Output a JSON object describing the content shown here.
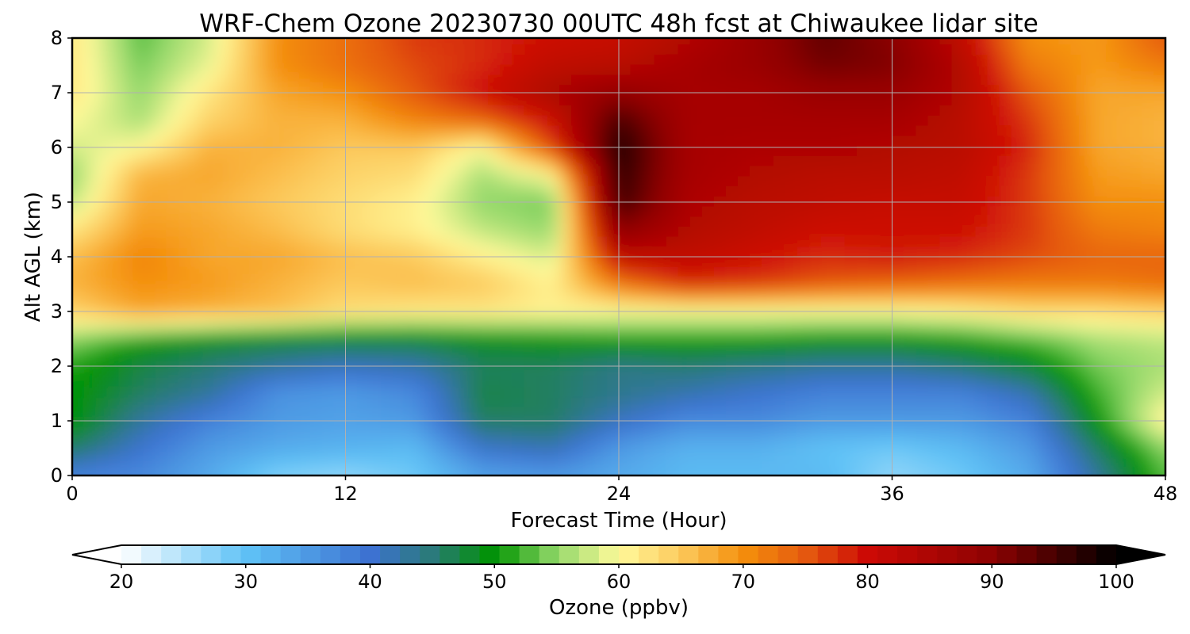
{
  "chart_data": {
    "type": "heatmap",
    "title": "WRF-Chem Ozone  20230730 00UTC 48h fcst at Chiwaukee lidar site",
    "xlabel": "Forecast Time (Hour)",
    "ylabel": "Alt AGL (km)",
    "xlim": [
      0,
      48
    ],
    "ylim": [
      0,
      8
    ],
    "x_ticks": [
      0,
      12,
      24,
      36,
      48
    ],
    "y_ticks": [
      0,
      1,
      2,
      3,
      4,
      5,
      6,
      7,
      8
    ],
    "grid": true,
    "x": [
      0,
      3,
      6,
      9,
      12,
      15,
      18,
      21,
      24,
      27,
      30,
      33,
      36,
      39,
      42,
      45,
      48
    ],
    "y": [
      0,
      0.5,
      1,
      1.5,
      2,
      2.5,
      3,
      3.5,
      4,
      4.5,
      5,
      5.5,
      6,
      6.5,
      7,
      7.5,
      8
    ],
    "z": [
      [
        38,
        37,
        33,
        28,
        27,
        29,
        34,
        35,
        33,
        31,
        31,
        31,
        27,
        29,
        33,
        43,
        53
      ],
      [
        46,
        40,
        35,
        33,
        32,
        31,
        40,
        42,
        35,
        32,
        32,
        30,
        29,
        31,
        35,
        46,
        55
      ],
      [
        50,
        43,
        38,
        35,
        34,
        35,
        46,
        46,
        41,
        37,
        37,
        35,
        35,
        35,
        38,
        50,
        61
      ],
      [
        50,
        46,
        43,
        36,
        35,
        37,
        47,
        46,
        44,
        42,
        40,
        38,
        38,
        38,
        42,
        52,
        58
      ],
      [
        51,
        47,
        45,
        43,
        41,
        42,
        46,
        46,
        44,
        45,
        44,
        43,
        43,
        45,
        48,
        54,
        56
      ],
      [
        55,
        51,
        49,
        48,
        48,
        48,
        49,
        50,
        51,
        51,
        51,
        50,
        50,
        51,
        53,
        56,
        57
      ],
      [
        64,
        68,
        67,
        66,
        63,
        62,
        62,
        61,
        60,
        60,
        60,
        60,
        60,
        61,
        63,
        63,
        64
      ],
      [
        67,
        70,
        69,
        67,
        65,
        66,
        65,
        61,
        72,
        78,
        77,
        75,
        74,
        73,
        72,
        72,
        73
      ],
      [
        66,
        71,
        68,
        68,
        66,
        65,
        61,
        58,
        82,
        82,
        80,
        78,
        79,
        78,
        76,
        74,
        74
      ],
      [
        62,
        69,
        68,
        66,
        63,
        61,
        57,
        55,
        90,
        84,
        82,
        80,
        80,
        80,
        77,
        72,
        71
      ],
      [
        57,
        68,
        67,
        65,
        63,
        61,
        55,
        54,
        96,
        85,
        83,
        82,
        81,
        81,
        77,
        70,
        70
      ],
      [
        55,
        67,
        68,
        66,
        64,
        63,
        56,
        60,
        97,
        86,
        84,
        83,
        83,
        82,
        77,
        69,
        68
      ],
      [
        58,
        60,
        67,
        67,
        65,
        65,
        60,
        76,
        98,
        86,
        85,
        85,
        84,
        83,
        78,
        68,
        67
      ],
      [
        60,
        56,
        64,
        67,
        67,
        71,
        74,
        80,
        95,
        86,
        86,
        86,
        86,
        83,
        77,
        68,
        67
      ],
      [
        62,
        55,
        62,
        68,
        70,
        75,
        80,
        85,
        89,
        86,
        86,
        88,
        88,
        84,
        75,
        68,
        68
      ],
      [
        62,
        54,
        59,
        70,
        73,
        76,
        78,
        82,
        83,
        86,
        88,
        92,
        91,
        84,
        72,
        69,
        72
      ],
      [
        62,
        53,
        58,
        70,
        73,
        77,
        78,
        80,
        81,
        84,
        88,
        93,
        90,
        82,
        70,
        69,
        75
      ]
    ],
    "colorbar": {
      "label": "Ozone  (ppbv)",
      "min": 20,
      "max": 100,
      "ticks": [
        20,
        30,
        40,
        50,
        60,
        70,
        80,
        90,
        100
      ],
      "extend": "both",
      "step": 1.6,
      "stops": [
        {
          "v": 20,
          "c": "#ffffff"
        },
        {
          "v": 30,
          "c": "#5fc2f6"
        },
        {
          "v": 40,
          "c": "#3d72d1"
        },
        {
          "v": 45,
          "c": "#2a7a78"
        },
        {
          "v": 50,
          "c": "#009300"
        },
        {
          "v": 55,
          "c": "#93d86a"
        },
        {
          "v": 60,
          "c": "#fffa9b"
        },
        {
          "v": 65,
          "c": "#fcc95c"
        },
        {
          "v": 70,
          "c": "#f48f0c"
        },
        {
          "v": 75,
          "c": "#e55a0f"
        },
        {
          "v": 80,
          "c": "#cc0a05"
        },
        {
          "v": 90,
          "c": "#8d0202"
        },
        {
          "v": 100,
          "c": "#000000"
        }
      ]
    }
  }
}
